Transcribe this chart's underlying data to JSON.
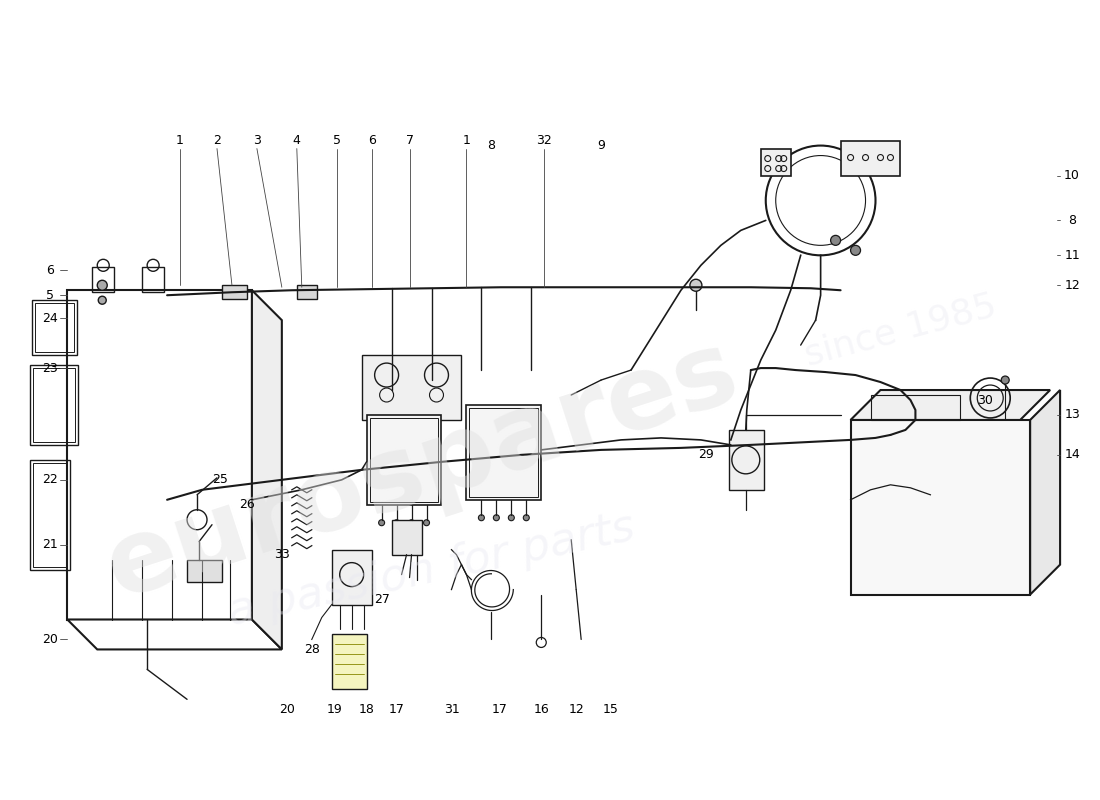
{
  "background_color": "#ffffff",
  "line_color": "#1a1a1a",
  "watermark1": "eurospares",
  "watermark2": "a passion for parts",
  "watermark3": "since 1985"
}
